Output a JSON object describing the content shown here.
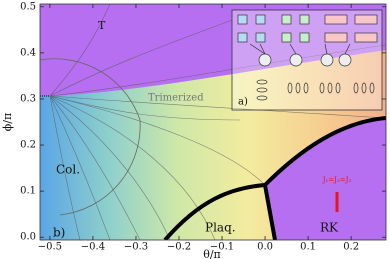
{
  "chart_data": {
    "type": "phase-diagram",
    "x_label": "θ/π",
    "y_label": "ϕ/π",
    "xlim": [
      -0.523,
      0.281
    ],
    "ylim": [
      -0.006,
      0.506
    ],
    "xticks": [
      {
        "value": -0.5,
        "label": "−0.5"
      },
      {
        "value": -0.4,
        "label": "−0.4"
      },
      {
        "value": -0.3,
        "label": "−0.3"
      },
      {
        "value": -0.2,
        "label": "−0.2"
      },
      {
        "value": -0.1,
        "label": "−0.1"
      },
      {
        "value": 0,
        "label": "0.0"
      },
      0.1,
      0.2
    ],
    "yticks": [
      {
        "value": 0,
        "label": "0.0"
      },
      0.1,
      0.2,
      0.3,
      0.4,
      0.5
    ],
    "annotations": [
      "T",
      "Trimerized",
      "Col.",
      "Plaq.",
      "RK",
      "a)",
      "b)",
      "J₁=J₂=J₃"
    ]
  }
}
